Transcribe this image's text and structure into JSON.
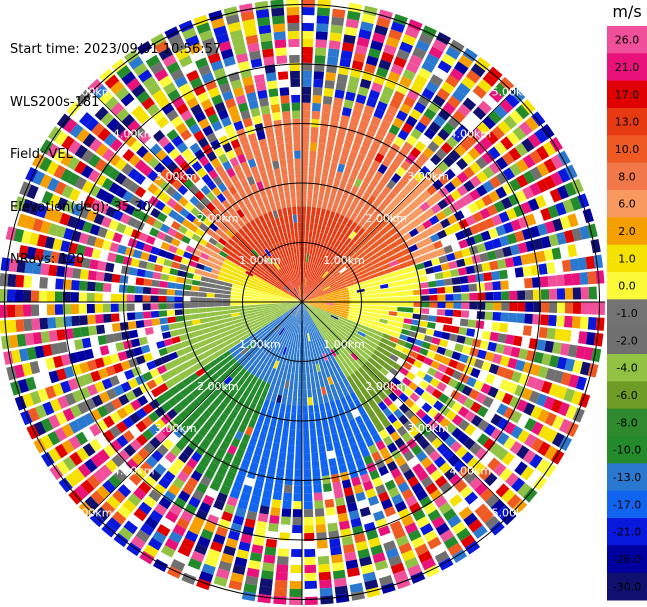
{
  "header": {
    "start_time": "Start time: 2023/09/01 10:56:57",
    "device": "WLS200s-181",
    "field": "Field: VEL",
    "elevation": "Elevation(deg): 35.30",
    "nrays": "NRays: 120"
  },
  "ppi": {
    "range_ring_labels": [
      "1.00km",
      "2.00km",
      "3.00km",
      "4.00km",
      "5.00km"
    ],
    "n_rays": 120
  },
  "colorbar": {
    "unit": "m/s",
    "ticks": [
      "26.0",
      "21.0",
      "17.0",
      "13.0",
      "10.0",
      "8.0",
      "6.0",
      "2.0",
      "1.0",
      "0.0",
      "-1.0",
      "-2.0",
      "-4.0",
      "-6.0",
      "-8.0",
      "-10.0",
      "-13.0",
      "-17.0",
      "-21.0",
      "-26.0",
      "-30.0"
    ],
    "colors": [
      "#f0509a",
      "#e8127a",
      "#e00000",
      "#e83a12",
      "#ee5a22",
      "#f2784a",
      "#f89a60",
      "#f6a000",
      "#f6e200",
      "#fbfb3a",
      "#737373",
      "#707070",
      "#92c244",
      "#6e9c26",
      "#2f8a2f",
      "#238b2b",
      "#2a78d0",
      "#1064f0",
      "#0818dc",
      "#0000a0",
      "#101070"
    ]
  }
}
